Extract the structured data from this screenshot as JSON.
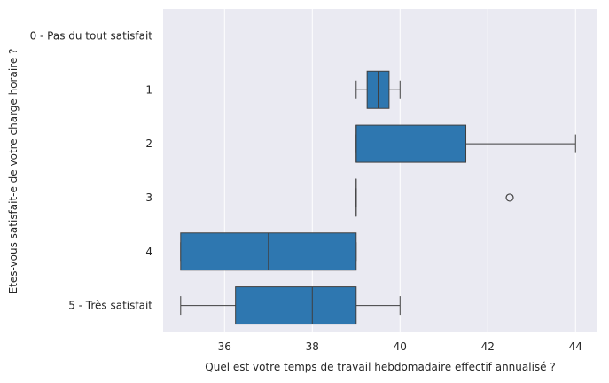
{
  "chart_data": {
    "type": "boxplot",
    "orientation": "horizontal",
    "xlabel": "Quel est votre temps de travail hebdomadaire effectif annualisé ?",
    "ylabel": "Etes-vous satisfait-e de votre charge horaire ?",
    "xlim": [
      34.6,
      44.5
    ],
    "xticks": [
      36,
      38,
      40,
      42,
      44
    ],
    "grid": true,
    "categories": [
      "0 - Pas du tout satisfait",
      "1",
      "2",
      "3",
      "4",
      "5 - Très satisfait"
    ],
    "boxes": [
      null,
      {
        "whislo": 39.0,
        "q1": 39.25,
        "med": 39.5,
        "q3": 39.75,
        "whishi": 40.0,
        "fliers": []
      },
      {
        "whislo": 39.0,
        "q1": 39.0,
        "med": 39.0,
        "q3": 41.5,
        "whishi": 44.0,
        "fliers": []
      },
      {
        "whislo": 39.0,
        "q1": 39.0,
        "med": 39.0,
        "q3": 39.0,
        "whishi": 39.0,
        "fliers": [
          42.5
        ]
      },
      {
        "whislo": 35.0,
        "q1": 35.0,
        "med": 37.0,
        "q3": 39.0,
        "whishi": 39.0,
        "fliers": []
      },
      {
        "whislo": 35.0,
        "q1": 36.25,
        "med": 38.0,
        "q3": 39.0,
        "whishi": 40.0,
        "fliers": []
      }
    ],
    "colors": {
      "box_fill": "#2e77b0",
      "box_edge": "#3f3f3f",
      "plot_background": "#eaeaf2",
      "grid": "#ffffff"
    }
  }
}
